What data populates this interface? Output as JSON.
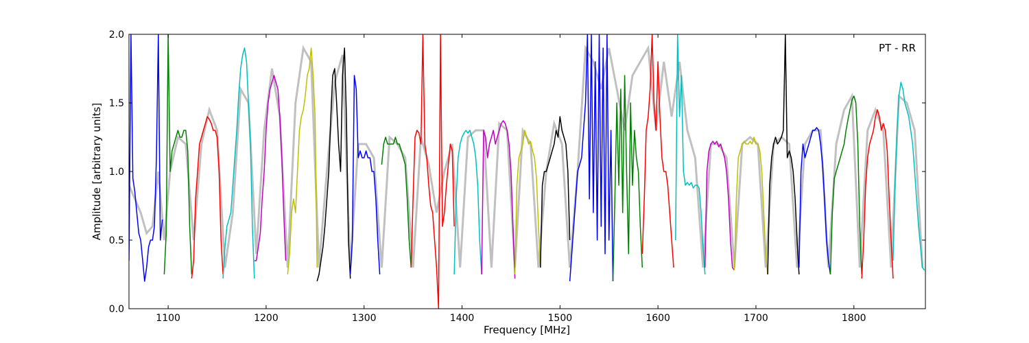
{
  "chart_data": {
    "type": "line",
    "title": "",
    "annotation": "PT - RR",
    "xlabel": "Frequency [MHz]",
    "ylabel": "Amplitude [arbitrary units]",
    "xlim": [
      1060,
      1873
    ],
    "ylim": [
      0.0,
      2.0
    ],
    "x_ticks": [
      1100,
      1200,
      1300,
      1400,
      1500,
      1600,
      1700,
      1800
    ],
    "x_tick_labels": [
      "1100",
      "1200",
      "1300",
      "1400",
      "1500",
      "1600",
      "1700",
      "1800"
    ],
    "y_ticks": [
      0.0,
      0.5,
      1.0,
      1.5,
      2.0
    ],
    "y_tick_labels": [
      "0.0",
      "0.5",
      "1.0",
      "1.5",
      "2.0"
    ],
    "grid": false,
    "background": {
      "color": "#c0c0c0",
      "x": [
        1060,
        1066,
        1072,
        1078,
        1084,
        1090,
        1096,
        1102,
        1110,
        1118,
        1126,
        1134,
        1142,
        1150,
        1158,
        1166,
        1174,
        1182,
        1190,
        1198,
        1206,
        1214,
        1222,
        1230,
        1238,
        1246,
        1254,
        1262,
        1270,
        1278,
        1286,
        1294,
        1302,
        1310,
        1318,
        1326,
        1334,
        1342,
        1350,
        1358,
        1366,
        1374,
        1382,
        1390,
        1398,
        1406,
        1414,
        1422,
        1430,
        1438,
        1446,
        1454,
        1462,
        1470,
        1478,
        1486,
        1494,
        1502,
        1510,
        1518,
        1526,
        1534,
        1542,
        1550,
        1558,
        1566,
        1574,
        1582,
        1590,
        1598,
        1606,
        1614,
        1622,
        1630,
        1638,
        1646,
        1654,
        1662,
        1670,
        1678,
        1686,
        1694,
        1702,
        1710,
        1718,
        1726,
        1734,
        1742,
        1750,
        1758,
        1766,
        1774,
        1782,
        1790,
        1798,
        1806,
        1814,
        1822,
        1830,
        1838,
        1846,
        1854,
        1862,
        1870
      ],
      "y": [
        0.9,
        0.8,
        0.7,
        0.55,
        0.6,
        1.0,
        0.5,
        1.0,
        1.25,
        1.2,
        0.5,
        1.2,
        1.45,
        1.3,
        0.3,
        0.7,
        1.6,
        1.5,
        0.4,
        1.3,
        1.75,
        1.4,
        0.3,
        1.5,
        1.9,
        1.8,
        0.3,
        1.0,
        1.65,
        1.85,
        0.3,
        1.2,
        1.2,
        1.1,
        0.3,
        1.25,
        1.2,
        1.1,
        0.3,
        1.25,
        1.05,
        0.7,
        1.0,
        1.2,
        0.3,
        1.25,
        1.3,
        1.3,
        0.3,
        1.35,
        1.3,
        0.3,
        1.3,
        1.2,
        0.3,
        1.0,
        1.35,
        1.2,
        0.3,
        1.0,
        1.9,
        1.8,
        1.6,
        1.9,
        1.6,
        1.3,
        1.7,
        1.8,
        1.9,
        1.3,
        1.8,
        1.4,
        1.8,
        1.3,
        1.1,
        0.3,
        1.2,
        1.2,
        1.1,
        0.3,
        1.2,
        1.25,
        1.2,
        0.3,
        1.2,
        1.25,
        1.2,
        0.3,
        1.2,
        1.3,
        1.3,
        0.3,
        1.2,
        1.45,
        1.55,
        0.3,
        1.3,
        1.45,
        1.3,
        0.3,
        1.55,
        1.5,
        1.3,
        0.3
      ]
    },
    "series": [
      {
        "color": "#0000ff",
        "x": [
          1060,
          1062,
          1064,
          1066,
          1068,
          1070,
          1072,
          1074,
          1076,
          1078,
          1080,
          1082,
          1084,
          1086,
          1088,
          1090,
          1092,
          1094
        ],
        "y": [
          0.35,
          2.0,
          0.95,
          0.85,
          0.7,
          0.55,
          0.5,
          0.35,
          0.2,
          0.3,
          0.45,
          0.5,
          0.5,
          0.6,
          1.1,
          2.0,
          0.5,
          0.65
        ]
      },
      {
        "color": "#008000",
        "x": [
          1096,
          1098,
          1100,
          1102,
          1104,
          1106,
          1108,
          1110,
          1112,
          1114,
          1116,
          1118,
          1120,
          1122,
          1124
        ],
        "y": [
          0.25,
          0.55,
          2.0,
          1.0,
          1.15,
          1.2,
          1.25,
          1.3,
          1.25,
          1.25,
          1.3,
          1.3,
          1.15,
          0.6,
          0.25
        ]
      },
      {
        "color": "#ff0000",
        "x": [
          1124,
          1126,
          1128,
          1130,
          1132,
          1134,
          1136,
          1138,
          1140,
          1142,
          1144,
          1146,
          1148,
          1150,
          1152,
          1154,
          1156
        ],
        "y": [
          0.22,
          0.35,
          0.8,
          1.0,
          1.2,
          1.25,
          1.3,
          1.35,
          1.4,
          1.38,
          1.35,
          1.3,
          1.3,
          1.25,
          1.0,
          0.5,
          0.25
        ]
      },
      {
        "color": "#00bfbf",
        "x": [
          1156,
          1158,
          1160,
          1162,
          1164,
          1166,
          1168,
          1170,
          1172,
          1174,
          1176,
          1178,
          1180,
          1182,
          1184,
          1186,
          1188
        ],
        "y": [
          0.22,
          0.45,
          0.6,
          0.65,
          0.7,
          0.9,
          1.1,
          1.3,
          1.55,
          1.75,
          1.85,
          1.9,
          1.8,
          1.5,
          1.2,
          0.6,
          0.22
        ]
      },
      {
        "color": "#bf00bf",
        "x": [
          1188,
          1190,
          1192,
          1194,
          1196,
          1198,
          1200,
          1202,
          1204,
          1206,
          1208,
          1210,
          1212,
          1214,
          1216,
          1218,
          1220
        ],
        "y": [
          0.35,
          0.35,
          0.45,
          0.55,
          0.8,
          1.0,
          1.3,
          1.5,
          1.6,
          1.65,
          1.7,
          1.65,
          1.6,
          1.4,
          1.1,
          0.7,
          0.35
        ]
      },
      {
        "color": "#bfbf00",
        "x": [
          1222,
          1224,
          1226,
          1228,
          1230,
          1232,
          1234,
          1236,
          1238,
          1240,
          1242,
          1244,
          1246,
          1248,
          1250,
          1252
        ],
        "y": [
          0.25,
          0.4,
          0.7,
          0.8,
          0.7,
          1.0,
          1.3,
          1.4,
          1.45,
          1.55,
          1.7,
          1.75,
          1.9,
          1.7,
          1.4,
          0.3
        ]
      },
      {
        "color": "#000000",
        "x": [
          1252,
          1254,
          1256,
          1258,
          1260,
          1262,
          1264,
          1266,
          1268,
          1270,
          1272,
          1274,
          1276,
          1278,
          1280,
          1282,
          1284,
          1286
        ],
        "y": [
          0.2,
          0.25,
          0.35,
          0.45,
          0.6,
          0.8,
          1.0,
          1.4,
          1.7,
          1.75,
          1.5,
          1.2,
          1.0,
          1.7,
          1.9,
          1.4,
          0.5,
          0.22
        ]
      },
      {
        "color": "#0000ff",
        "x": [
          1286,
          1288,
          1290,
          1292,
          1294,
          1296,
          1298,
          1300,
          1302,
          1304,
          1306,
          1308,
          1310,
          1312,
          1314,
          1316
        ],
        "y": [
          0.25,
          0.5,
          1.7,
          1.6,
          1.1,
          1.15,
          1.1,
          1.1,
          1.15,
          1.1,
          1.1,
          1.0,
          1.0,
          0.8,
          0.5,
          0.25
        ]
      },
      {
        "color": "#008000",
        "x": [
          1318,
          1320,
          1322,
          1324,
          1326,
          1328,
          1330,
          1332,
          1334,
          1336,
          1338,
          1340,
          1342,
          1344,
          1346,
          1348
        ],
        "y": [
          1.05,
          1.2,
          1.25,
          1.2,
          1.2,
          1.2,
          1.2,
          1.25,
          1.2,
          1.2,
          1.15,
          1.1,
          1.05,
          0.8,
          0.5,
          0.3
        ]
      },
      {
        "color": "#ff0000",
        "x": [
          1348,
          1350,
          1352,
          1354,
          1356,
          1358,
          1360,
          1362,
          1364,
          1366,
          1368,
          1370,
          1372,
          1374,
          1376,
          1378,
          1380,
          1382,
          1384,
          1386,
          1388,
          1390,
          1392
        ],
        "y": [
          0.3,
          0.8,
          1.25,
          1.3,
          1.28,
          1.2,
          2.0,
          1.2,
          1.1,
          0.9,
          0.75,
          0.7,
          0.5,
          0.3,
          0.0,
          2.0,
          0.6,
          0.7,
          0.9,
          1.05,
          1.2,
          1.15,
          0.6
        ]
      },
      {
        "color": "#00bfbf",
        "x": [
          1392,
          1394,
          1396,
          1398,
          1400,
          1402,
          1404,
          1406,
          1408,
          1410,
          1412,
          1414,
          1416,
          1418,
          1420
        ],
        "y": [
          0.25,
          0.8,
          1.1,
          1.2,
          1.25,
          1.28,
          1.3,
          1.28,
          1.3,
          1.25,
          1.2,
          1.1,
          0.9,
          0.5,
          0.25
        ]
      },
      {
        "color": "#bf00bf",
        "x": [
          1420,
          1422,
          1424,
          1426,
          1428,
          1430,
          1432,
          1434,
          1436,
          1438,
          1440,
          1442,
          1444,
          1446,
          1448,
          1450,
          1452,
          1454
        ],
        "y": [
          0.25,
          1.3,
          1.25,
          1.1,
          1.2,
          1.25,
          1.3,
          1.2,
          1.25,
          1.3,
          1.35,
          1.37,
          1.35,
          1.3,
          1.2,
          1.0,
          0.6,
          0.22
        ]
      },
      {
        "color": "#bfbf00",
        "x": [
          1454,
          1456,
          1458,
          1460,
          1462,
          1464,
          1466,
          1468,
          1470,
          1472,
          1474,
          1476,
          1478,
          1480
        ],
        "y": [
          0.25,
          0.9,
          1.1,
          1.15,
          1.2,
          1.3,
          1.25,
          1.2,
          1.22,
          1.15,
          1.1,
          0.95,
          0.6,
          0.3
        ]
      },
      {
        "color": "#000000",
        "x": [
          1480,
          1482,
          1484,
          1486,
          1488,
          1490,
          1492,
          1494,
          1496,
          1498,
          1500,
          1502,
          1504,
          1506,
          1508,
          1510
        ],
        "y": [
          0.3,
          0.9,
          1.0,
          1.0,
          1.05,
          1.1,
          1.15,
          1.2,
          1.3,
          1.25,
          1.4,
          1.3,
          1.25,
          1.2,
          1.0,
          0.5
        ]
      },
      {
        "color": "#0000ff",
        "x": [
          1510,
          1512,
          1514,
          1516,
          1518,
          1520,
          1522,
          1524,
          1526,
          1528,
          1530,
          1532,
          1534,
          1536,
          1538,
          1540,
          1542,
          1544,
          1546,
          1548,
          1550,
          1552,
          1554
        ],
        "y": [
          0.2,
          0.4,
          0.6,
          0.8,
          1.0,
          1.05,
          1.1,
          1.3,
          1.5,
          2.0,
          0.8,
          2.0,
          0.7,
          1.8,
          0.5,
          2.0,
          0.6,
          1.9,
          0.4,
          2.0,
          0.5,
          1.3,
          0.2
        ]
      },
      {
        "color": "#008000",
        "x": [
          1554,
          1556,
          1558,
          1560,
          1562,
          1564,
          1566,
          1568,
          1570,
          1572,
          1574,
          1576,
          1578,
          1580,
          1582,
          1584
        ],
        "y": [
          0.2,
          0.8,
          1.5,
          0.9,
          1.6,
          0.7,
          1.7,
          1.0,
          0.4,
          1.5,
          0.9,
          1.3,
          1.1,
          1.0,
          0.6,
          0.3
        ]
      },
      {
        "color": "#ff0000",
        "x": [
          1584,
          1586,
          1588,
          1590,
          1592,
          1594,
          1596,
          1598,
          1600,
          1602,
          1604,
          1606,
          1608,
          1610,
          1612,
          1614,
          1616
        ],
        "y": [
          0.4,
          0.8,
          1.3,
          1.4,
          1.6,
          2.0,
          1.5,
          1.3,
          1.8,
          1.4,
          1.1,
          1.0,
          1.0,
          0.9,
          0.7,
          0.5,
          0.3
        ]
      },
      {
        "color": "#00bfbf",
        "x": [
          1618,
          1620,
          1622,
          1624,
          1626,
          1628,
          1630,
          1632,
          1634,
          1636,
          1638,
          1640,
          1642,
          1644,
          1646,
          1648
        ],
        "y": [
          0.5,
          2.0,
          1.4,
          1.7,
          1.0,
          0.9,
          0.92,
          0.9,
          0.92,
          0.88,
          0.9,
          0.9,
          0.88,
          0.7,
          0.45,
          0.25
        ]
      },
      {
        "color": "#bf00bf",
        "x": [
          1648,
          1650,
          1652,
          1654,
          1656,
          1658,
          1660,
          1662,
          1664,
          1666,
          1668,
          1670,
          1672,
          1674,
          1676,
          1678
        ],
        "y": [
          0.3,
          1.0,
          1.15,
          1.2,
          1.22,
          1.2,
          1.22,
          1.18,
          1.2,
          1.15,
          1.1,
          1.0,
          0.8,
          0.5,
          0.3,
          0.28
        ]
      },
      {
        "color": "#bfbf00",
        "x": [
          1678,
          1680,
          1682,
          1684,
          1686,
          1688,
          1690,
          1692,
          1694,
          1696,
          1698,
          1700,
          1702,
          1704,
          1706,
          1708,
          1710,
          1712
        ],
        "y": [
          0.28,
          0.8,
          1.1,
          1.15,
          1.2,
          1.22,
          1.2,
          1.2,
          1.22,
          1.2,
          1.25,
          1.2,
          1.2,
          1.15,
          1.0,
          0.7,
          0.4,
          0.25
        ]
      },
      {
        "color": "#000000",
        "x": [
          1712,
          1714,
          1716,
          1718,
          1720,
          1722,
          1724,
          1726,
          1728,
          1730,
          1732,
          1734,
          1736,
          1738,
          1740,
          1742,
          1744
        ],
        "y": [
          0.25,
          0.9,
          1.1,
          1.2,
          1.25,
          1.2,
          1.22,
          1.25,
          1.3,
          2.0,
          1.1,
          1.15,
          1.1,
          1.0,
          0.8,
          0.5,
          0.25
        ]
      },
      {
        "color": "#0000ff",
        "x": [
          1744,
          1746,
          1748,
          1750,
          1752,
          1754,
          1756,
          1758,
          1760,
          1762,
          1764,
          1766,
          1768,
          1770,
          1772,
          1774,
          1776
        ],
        "y": [
          0.3,
          1.0,
          1.2,
          1.1,
          1.15,
          1.2,
          1.25,
          1.3,
          1.3,
          1.32,
          1.3,
          1.2,
          1.05,
          0.8,
          0.5,
          0.35,
          0.25
        ]
      },
      {
        "color": "#008000",
        "x": [
          1776,
          1778,
          1780,
          1782,
          1784,
          1786,
          1788,
          1790,
          1792,
          1794,
          1796,
          1798,
          1800,
          1802,
          1804,
          1806,
          1808
        ],
        "y": [
          0.25,
          0.7,
          0.95,
          1.0,
          1.05,
          1.1,
          1.15,
          1.2,
          1.3,
          1.38,
          1.45,
          1.52,
          1.55,
          1.5,
          1.2,
          0.6,
          0.25
        ]
      },
      {
        "color": "#ff0000",
        "x": [
          1808,
          1810,
          1812,
          1814,
          1816,
          1818,
          1820,
          1822,
          1824,
          1826,
          1828,
          1830,
          1832,
          1834,
          1836,
          1838,
          1840
        ],
        "y": [
          0.22,
          0.5,
          0.9,
          1.1,
          1.2,
          1.25,
          1.3,
          1.4,
          1.45,
          1.4,
          1.3,
          1.35,
          1.3,
          1.15,
          0.8,
          0.5,
          0.22
        ]
      },
      {
        "color": "#00bfbf",
        "x": [
          1840,
          1842,
          1844,
          1846,
          1848,
          1850,
          1852,
          1854,
          1856,
          1858,
          1860,
          1862,
          1864,
          1866,
          1868,
          1870,
          1872
        ],
        "y": [
          0.35,
          0.9,
          1.3,
          1.55,
          1.65,
          1.6,
          1.5,
          1.45,
          1.4,
          1.3,
          1.2,
          1.0,
          0.8,
          0.6,
          0.45,
          0.3,
          0.28
        ]
      }
    ]
  }
}
